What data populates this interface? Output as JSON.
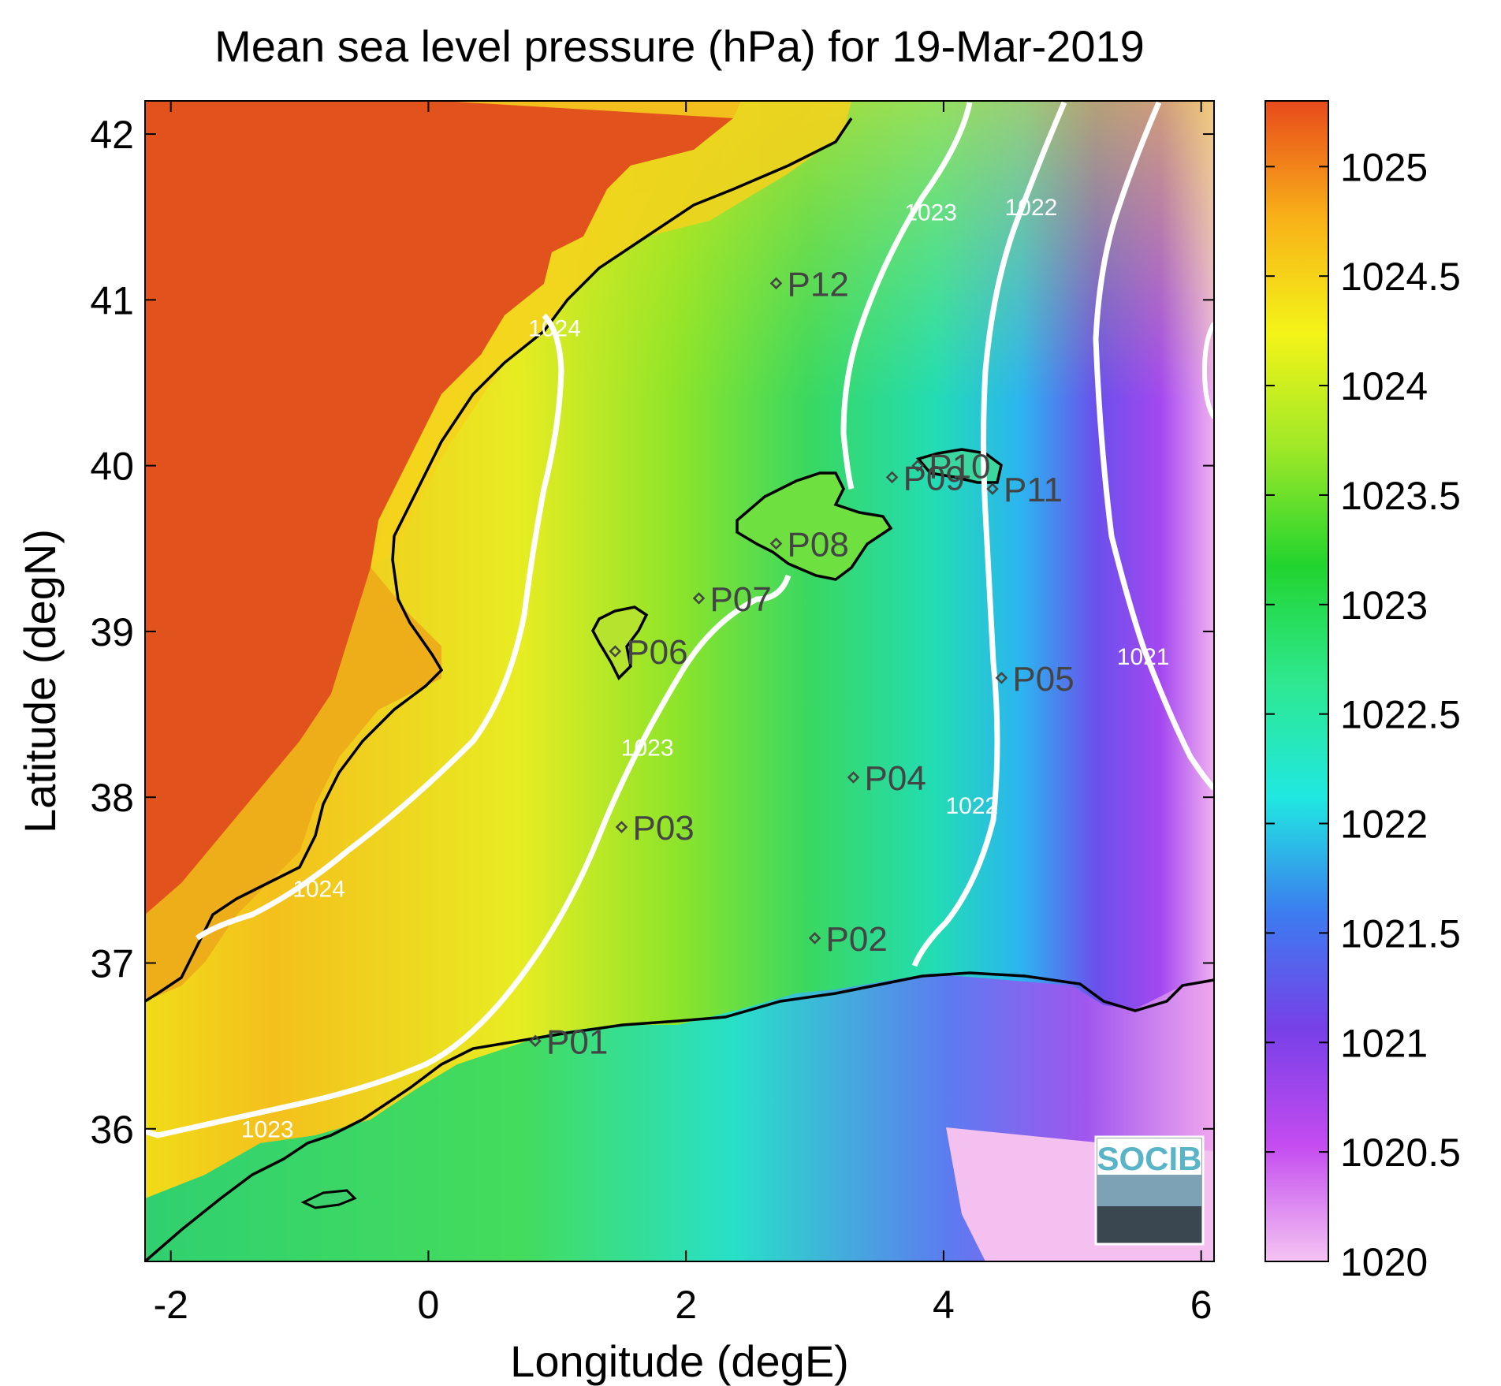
{
  "chart_data": {
    "type": "heatmap",
    "title": "Mean sea level pressure (hPa) for 19-Mar-2019",
    "xlabel": "Longitude (degE)",
    "ylabel": "Latitude (degN)",
    "xlim": [
      -2.2,
      6.1
    ],
    "ylim": [
      35.2,
      42.2
    ],
    "x_ticks": [
      -2,
      0,
      2,
      4,
      6
    ],
    "x_tick_labels": [
      "-2",
      "0",
      "2",
      "4",
      "6"
    ],
    "y_ticks": [
      36,
      37,
      38,
      39,
      40,
      41,
      42
    ],
    "y_tick_labels": [
      "36",
      "37",
      "38",
      "39",
      "40",
      "41",
      "42"
    ],
    "colorbar": {
      "range": [
        1020,
        1025.3
      ],
      "ticks": [
        1020,
        1020.5,
        1021,
        1021.5,
        1022,
        1022.5,
        1023,
        1023.5,
        1024,
        1024.5,
        1025
      ],
      "tick_labels": [
        "1020",
        "1020.5",
        "1021",
        "1021.5",
        "1022",
        "1022.5",
        "1023",
        "1023.5",
        "1024",
        "1024.5",
        "1025"
      ],
      "colors": [
        "#f4c4f2",
        "#c44cf0",
        "#7840e8",
        "#3c7cf0",
        "#20e8e0",
        "#2ee890",
        "#22d42e",
        "#9ee828",
        "#f4f418",
        "#f8b018",
        "#e84a1c"
      ]
    },
    "points": [
      {
        "name": "P01",
        "lon": 0.83,
        "lat": 36.53
      },
      {
        "name": "P02",
        "lon": 3.0,
        "lat": 37.15
      },
      {
        "name": "P03",
        "lon": 1.5,
        "lat": 37.82
      },
      {
        "name": "P04",
        "lon": 3.3,
        "lat": 38.12
      },
      {
        "name": "P05",
        "lon": 4.45,
        "lat": 38.72
      },
      {
        "name": "P06",
        "lon": 1.45,
        "lat": 38.88
      },
      {
        "name": "P07",
        "lon": 2.1,
        "lat": 39.2
      },
      {
        "name": "P08",
        "lon": 2.7,
        "lat": 39.53
      },
      {
        "name": "P09",
        "lon": 3.6,
        "lat": 39.93
      },
      {
        "name": "P10",
        "lon": 3.8,
        "lat": 40.0
      },
      {
        "name": "P11",
        "lon": 4.38,
        "lat": 39.86
      },
      {
        "name": "P12",
        "lon": 2.7,
        "lat": 41.1
      }
    ],
    "contours": [
      {
        "label": "1024",
        "lon": 0.98,
        "lat": 40.78
      },
      {
        "label": "1024",
        "lon": -0.85,
        "lat": 37.4
      },
      {
        "label": "1023",
        "lon": 1.7,
        "lat": 38.25
      },
      {
        "label": "1023",
        "lon": -1.25,
        "lat": 35.95
      },
      {
        "label": "1023",
        "lon": 3.9,
        "lat": 41.48
      },
      {
        "label": "1022",
        "lon": 4.68,
        "lat": 41.51
      },
      {
        "label": "1022",
        "lon": 4.22,
        "lat": 37.9
      },
      {
        "label": "1021",
        "lon": 5.55,
        "lat": 38.8
      }
    ],
    "logo": "SOCIB"
  }
}
